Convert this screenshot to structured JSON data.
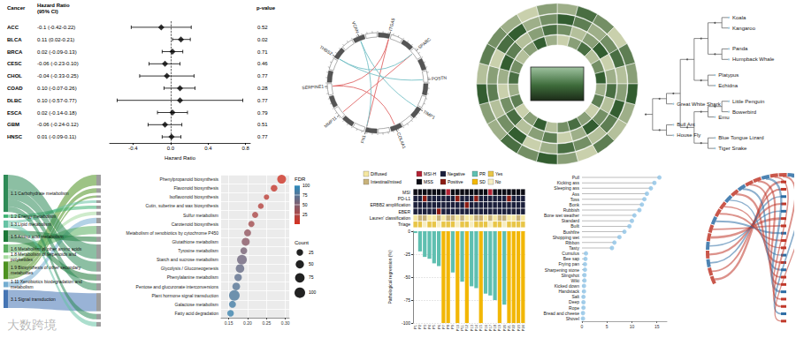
{
  "watermark": "大数跨境",
  "chart_data": [
    {
      "type": "forest",
      "columns": [
        "Cancer",
        "Hazard Ratio (95% CI)",
        "p-value"
      ],
      "x_label": "Hazard Ratio",
      "categories": [
        "ACC",
        "BLCA",
        "BRCA",
        "CESC",
        "CHOL",
        "COAD",
        "DLBC",
        "ESCA",
        "GBM",
        "HNSC"
      ],
      "values": [
        -0.1,
        0.11,
        0.02,
        -0.06,
        -0.04,
        0.1,
        0.1,
        0.02,
        -0.06,
        0.01
      ],
      "lower": [
        -0.42,
        0.02,
        -0.09,
        -0.23,
        -0.33,
        -0.07,
        -0.57,
        -0.14,
        -0.24,
        -0.09
      ],
      "upper": [
        0.22,
        0.21,
        0.13,
        0.1,
        0.25,
        0.26,
        0.77,
        0.18,
        0.12,
        0.11
      ],
      "value_labels": [
        "-0.1 (-0.42-0.22)",
        "0.11 (0.02-0.21)",
        "0.02 (-0.09-0.13)",
        "-0.06 (-0.23-0.10)",
        "-0.04 (-0.33-0.25)",
        "0.10 (-0.07-0.26)",
        "0.10 (-0.57-0.77)",
        "0.02 (-0.14-0.18)",
        "-0.06 (-0.24-0.12)",
        "0.01 (-0.09-0.11)"
      ],
      "p_values": [
        0.52,
        0.02,
        0.71,
        0.46,
        0.77,
        0.28,
        0.77,
        0.79,
        0.51,
        0.77
      ],
      "reference": 0,
      "xlim": [
        -0.65,
        0.85
      ],
      "xticks": [
        -0.4,
        {
          "value": 0,
          "label": "0.0"
        },
        0.4,
        0.8
      ],
      "marker": "diamond",
      "color": "#000000",
      "line_style": "dashed"
    },
    {
      "type": "circos",
      "labels": [
        "ITGA5",
        "SPARC",
        "POSTN",
        "TIMP1",
        "COL4A1",
        "FN1",
        "MMP11",
        "SERPINE1",
        "THBS2",
        "VCAN"
      ],
      "links": [
        {
          "source": "ITGA5",
          "target": "FN1",
          "color": "#e06666"
        },
        {
          "source": "SPARC",
          "target": "MMP11",
          "color": "#e06666"
        },
        {
          "source": "POSTN",
          "target": "THBS2",
          "color": "#76c1c6"
        },
        {
          "source": "TIMP1",
          "target": "VCAN",
          "color": "#76c1c6"
        },
        {
          "source": "COL4A1",
          "target": "SERPINE1",
          "color": "#e06666"
        },
        {
          "source": "FN1",
          "target": "VCAN",
          "color": "#76c1c6"
        },
        {
          "source": "SPARC",
          "target": "THBS2",
          "color": "#76c1c6"
        },
        {
          "source": "ITGA5",
          "target": "SERPINE1",
          "color": "#e06666"
        }
      ]
    },
    {
      "type": "radial_heatmap",
      "cells": [
        [
          0.2,
          0.5,
          0.8,
          0.3,
          0.6,
          0.9,
          0.4,
          0.7,
          0.2,
          0.5,
          0.8,
          0.6,
          0.3,
          0.9,
          0.5,
          0.2,
          0.7,
          0.4,
          0.8,
          0.6,
          0.3,
          0.5,
          0.9,
          0.4
        ],
        [
          0.6,
          0.3,
          0.5,
          0.9,
          0.2,
          0.4,
          0.8,
          0.3,
          0.6,
          0.9,
          0.4,
          0.2,
          0.7,
          0.5,
          0.3,
          0.8,
          0.6,
          0.2,
          0.4,
          0.9,
          0.7,
          0.3,
          0.5,
          0.8
        ],
        [
          0.9,
          0.7,
          0.4,
          0.6,
          0.8,
          0.3,
          0.5,
          0.9,
          0.7,
          0.3,
          0.6,
          0.8,
          0.4,
          0.2,
          0.9,
          0.6,
          0.3,
          0.7,
          0.5,
          0.2,
          0.8,
          0.9,
          0.4,
          0.6
        ],
        [
          0.4,
          0.8,
          0.6,
          0.2,
          0.7,
          0.5,
          0.9,
          0.4,
          0.3,
          0.7,
          0.2,
          0.5,
          0.9,
          0.6,
          0.8,
          0.4,
          0.5,
          0.9,
          0.3,
          0.7,
          0.6,
          0.4,
          0.2,
          0.5
        ]
      ],
      "color_range": [
        0,
        1
      ]
    },
    {
      "type": "tree",
      "color": "#9ecae1",
      "root": {
        "children": [
          {
            "children": [
              {
                "children": [
                  {
                    "children": [
                      {
                        "children": [
                          {
                            "children": [
                              {
                                "name": "Koala"
                              },
                              {
                                "name": "Kangaroo"
                              }
                            ]
                          },
                          {
                            "children": [
                              {
                                "name": "Panda"
                              },
                              {
                                "name": "Humpback Whale"
                              }
                            ]
                          }
                        ]
                      },
                      {
                        "children": [
                          {
                            "name": "Platypus"
                          },
                          {
                            "name": "Echidna"
                          }
                        ]
                      }
                    ]
                  },
                  {
                    "children": [
                      {
                        "children": [
                          {
                            "children": [
                              {
                                "name": "Little Penguin"
                              },
                              {
                                "name": "Bowerbird"
                              }
                            ]
                          },
                          {
                            "name": "Emu"
                          }
                        ]
                      },
                      {
                        "children": [
                          {
                            "name": "Blue Tongue Lizard"
                          },
                          {
                            "name": "Tiger Snake"
                          }
                        ]
                      }
                    ]
                  }
                ]
              },
              {
                "name": "Great White Shark"
              }
            ]
          },
          {
            "children": [
              {
                "name": "Bull Ant"
              },
              {
                "name": "House Fly"
              }
            ]
          }
        ]
      }
    },
    {
      "type": "sankey",
      "categories": [
        "1.1 Carbohydrate metabolism",
        "1.2 Energy metabolism",
        "1.3 Lipid metabolism",
        "1.5 Amino acid metabolism",
        "1.6 Metabolism of other amino acids",
        "1.8 Metabolism of terpenoids and polyketides",
        "1.9 Biosynthesis of other secondary metabolites",
        "1.11 Xenobiotics biodegradation and metabolism",
        "3.1 Signal transduction"
      ],
      "colors": [
        "#2e8b57",
        "#3cb371",
        "#66c2a4",
        "#1b7837",
        "#5aae61",
        "#a6dba0",
        "#4d9221",
        "#74add1",
        "#4575b4"
      ],
      "links": [
        {
          "source": "1.9 Biosynthesis of other secondary metabolites",
          "target": "Phenylpropanoid biosynthesis",
          "value": 60
        },
        {
          "source": "1.9 Biosynthesis of other secondary metabolites",
          "target": "Flavonoid biosynthesis",
          "value": 25
        },
        {
          "source": "1.9 Biosynthesis of other secondary metabolites",
          "target": "Isoflavonoid biosynthesis",
          "value": 12
        },
        {
          "source": "1.3 Lipid metabolism",
          "target": "Cutin, suberine and wax biosynthesis",
          "value": 15
        },
        {
          "source": "1.2 Energy metabolism",
          "target": "Sulfur metabolism",
          "value": 18
        },
        {
          "source": "1.8 Metabolism of terpenoids and polyketides",
          "target": "Carotenoid biosynthesis",
          "value": 20
        },
        {
          "source": "1.11 Xenobiotics biodegradation and metabolism",
          "target": "Metabolism of xenobiotics by cytochrome P450",
          "value": 30
        },
        {
          "source": "1.6 Metabolism of other amino acids",
          "target": "Glutathione metabolism",
          "value": 45
        },
        {
          "source": "1.5 Amino acid metabolism",
          "target": "Tyrosine metabolism",
          "value": 28
        },
        {
          "source": "1.1 Carbohydrate metabolism",
          "target": "Starch and sucrose metabolism",
          "value": 80
        },
        {
          "source": "1.1 Carbohydrate metabolism",
          "target": "Glycolysis / Gluconeogenesis",
          "value": 55
        },
        {
          "source": "1.5 Amino acid metabolism",
          "target": "Phenylalanine metabolism",
          "value": 35
        },
        {
          "source": "1.1 Carbohydrate metabolism",
          "target": "Pentose and glucuronate interconversions",
          "value": 40
        },
        {
          "source": "3.1 Signal transduction",
          "target": "Plant hormone signal transduction",
          "value": 100
        },
        {
          "source": "1.1 Carbohydrate metabolism",
          "target": "Galactose metabolism",
          "value": 30
        },
        {
          "source": "1.3 Lipid metabolism",
          "target": "Fatty acid degradation",
          "value": 25
        }
      ]
    },
    {
      "type": "bubble",
      "categories": [
        "Phenylpropanoid biosynthesis",
        "Flavonoid biosynthesis",
        "Isoflavonoid biosynthesis",
        "Cutin, suberine and wax biosynthesis",
        "Sulfur metabolism",
        "Carotenoid biosynthesis",
        "Metabolism of xenobiotics by cytochrome P450",
        "Glutathione metabolism",
        "Tyrosine metabolism",
        "Starch and sucrose metabolism",
        "Glycolysis / Gluconeogenesis",
        "Phenylalanine metabolism",
        "Pentose and glucuronate interconversions",
        "Plant hormone signal transduction",
        "Galactose metabolism",
        "Fatty acid degradation"
      ],
      "values": [
        0.29,
        0.27,
        0.25,
        0.235,
        0.22,
        0.21,
        0.2,
        0.195,
        0.19,
        0.185,
        0.18,
        0.175,
        0.17,
        0.165,
        0.16,
        0.155
      ],
      "sizes": [
        60,
        25,
        12,
        15,
        18,
        20,
        30,
        45,
        28,
        80,
        55,
        35,
        40,
        100,
        30,
        25
      ],
      "fdr": [
        5,
        10,
        15,
        20,
        25,
        30,
        40,
        45,
        55,
        60,
        65,
        70,
        75,
        80,
        85,
        90
      ],
      "xlim": [
        0.13,
        0.31
      ],
      "xticks": [
        0.15,
        {
          "value": 0.2,
          "label": "0.20"
        },
        0.25,
        {
          "value": 0.3,
          "label": "0.30"
        }
      ],
      "grid": true,
      "color_bar": {
        "title": "FDR",
        "range": [
          0,
          100
        ],
        "ticks": [
          25,
          50,
          75,
          100
        ]
      },
      "size_legend": {
        "title": "Count",
        "values": [
          25,
          50,
          75,
          100
        ]
      }
    },
    {
      "type": "oncoplot",
      "legend_items": [
        {
          "label": "Diffused",
          "color": "#f5e7a1"
        },
        {
          "label": "MSI-H",
          "color": "#b22234"
        },
        {
          "label": "Negative",
          "color": "#1b1f3b"
        },
        {
          "label": "PR",
          "color": "#5fbfb0"
        },
        {
          "label": "Yes",
          "color": "#e8c547"
        },
        {
          "label": "Intestinal/mixed",
          "color": "#c8b27a"
        },
        {
          "label": "MSS",
          "color": "#0c0c14"
        },
        {
          "label": "Positive",
          "color": "#8c1c13"
        },
        {
          "label": "SD",
          "color": "#f2b705"
        },
        {
          "label": "No",
          "color": "#f6edc2"
        }
      ],
      "tiles": [
        {
          "name": "MSI",
          "values": [
            "MSS",
            "MSS",
            "MSS",
            "MSS",
            "MSS",
            "MSS",
            "MSS",
            "MSI-H",
            "MSS",
            "MSS",
            "MSS",
            "MSS",
            "MSS",
            "MSS",
            "MSS",
            "MSS",
            "MSI-H",
            "MSS",
            "MSS",
            "MSS",
            "MSS",
            "MSS",
            "MSS",
            "MSS"
          ]
        },
        {
          "name": "PD-L1",
          "values": [
            "Negative",
            "Negative",
            "Positive",
            "Negative",
            "Negative",
            "Negative",
            "Negative",
            "Negative",
            "Negative",
            "Positive",
            "Negative",
            "Negative",
            "Negative",
            "Positive",
            "Negative",
            "Negative",
            "Negative",
            "Negative",
            "Negative",
            "Negative",
            "Positive",
            "Negative",
            "Negative",
            "Negative"
          ]
        },
        {
          "name": "ERBB2 amplification",
          "values": [
            "Negative",
            "Negative",
            "Negative",
            "Negative",
            "Negative",
            "Negative",
            "Negative",
            "Negative",
            "Negative",
            "Negative",
            "Negative",
            "Positive",
            "Negative",
            "Negative",
            "Negative",
            "Negative",
            "Negative",
            "Negative",
            "Negative",
            "Negative",
            "Negative",
            "Negative",
            "Negative",
            "Negative"
          ]
        },
        {
          "name": "EBER",
          "values": [
            "Negative",
            "Negative",
            "Negative",
            "Negative",
            "Negative",
            "Positive",
            "Negative",
            "Negative",
            "Negative",
            "Negative",
            "Negative",
            "Negative",
            "Negative",
            "Negative",
            "Negative",
            "Negative",
            "Negative",
            "Negative",
            "Negative",
            "Negative",
            "Negative",
            "Negative",
            "Negative",
            "Negative"
          ]
        },
        {
          "name": "Lauren' classification",
          "values": [
            "Diffused",
            "Intestinal/mixed",
            "Intestinal/mixed",
            "Diffused",
            "Diffused",
            "Intestinal/mixed",
            "Diffused",
            "Intestinal/mixed",
            "Intestinal/mixed",
            "Diffused",
            "Intestinal/mixed",
            "Diffused",
            "Diffused",
            "Intestinal/mixed",
            "Intestinal/mixed",
            "Diffused",
            "Intestinal/mixed",
            "Diffused",
            "Intestinal/mixed",
            "Intestinal/mixed",
            "Diffused",
            "Diffused",
            "Intestinal/mixed",
            "Diffused"
          ]
        },
        {
          "name": "Triage",
          "values": [
            "Yes",
            "Yes",
            "No",
            "Yes",
            "Yes",
            "No",
            "Yes",
            "Yes",
            "Yes",
            "No",
            "Yes",
            "Yes",
            "No",
            "Yes",
            "Yes",
            "Yes",
            "No",
            "Yes",
            "Yes",
            "No",
            "Yes",
            "Yes",
            "Yes",
            "Yes"
          ]
        }
      ],
      "categories": [
        "P1",
        "P2",
        "P3",
        "P4",
        "P5",
        "P6",
        "P7",
        "P8",
        "P9",
        "P10",
        "P11",
        "P12",
        "P13",
        "P14",
        "P15",
        "P16",
        "P17",
        "P18",
        "P19",
        "P20",
        "P21",
        "P22",
        "P23",
        "P24"
      ],
      "values": [
        -2,
        -22,
        -28,
        -30,
        -35,
        -38,
        -100,
        -100,
        -45,
        -100,
        -55,
        -100,
        -60,
        -62,
        -100,
        -68,
        -70,
        -75,
        -100,
        -80,
        -100,
        -100,
        -100,
        -100
      ],
      "colors": [
        "#5fbfb0",
        "#5fbfb0",
        "#5fbfb0",
        "#5fbfb0",
        "#5fbfb0",
        "#5fbfb0",
        "#f2b705",
        "#f2b705",
        "#5fbfb0",
        "#f2b705",
        "#5fbfb0",
        "#f2b705",
        "#5fbfb0",
        "#5fbfb0",
        "#f2b705",
        "#5fbfb0",
        "#5fbfb0",
        "#5fbfb0",
        "#f2b705",
        "#5fbfb0",
        "#f2b705",
        "#f2b705",
        "#f2b705",
        "#f2b705"
      ],
      "y_label": "Pathological regression (%)",
      "ylim": [
        -100,
        0
      ],
      "yticks": [
        0,
        -25,
        -50,
        -75,
        -100
      ]
    },
    {
      "type": "lollipop",
      "orientation": "horizontal",
      "color": "#8ec3e6",
      "categories": [
        "Pull",
        "Kicking ass",
        "Sleeping ass",
        "Ass",
        "Toss",
        "Bonk",
        "Rubbish",
        "Bone wet weather",
        "Standard",
        "Built",
        "Bushfire",
        "Shopping wet",
        "Ribbon",
        "Tasty",
        "Cumulus",
        "Bee sap",
        "Frying pan",
        "Sharpening stone",
        "Slingshot",
        "Wiki",
        "Kicked down",
        "Handstack",
        "Salt",
        "Deep",
        "Rope",
        "Bread and cheese",
        "Shovel"
      ],
      "values": [
        15.5,
        14.5,
        13.8,
        13,
        12.5,
        12,
        11.5,
        10.5,
        10,
        9.5,
        8.5,
        7.5,
        6.5,
        6,
        0.8,
        0.7,
        0.6,
        0.6,
        0.5,
        0.5,
        0.4,
        0.4,
        0.3,
        0.3,
        0.3,
        0.2,
        0.2
      ],
      "xlim": [
        0,
        17
      ],
      "xticks": [
        0,
        5,
        10,
        15
      ]
    },
    {
      "type": "chord",
      "values": [
        0.8,
        0.6,
        -0.5,
        0.7,
        -0.4,
        0.9,
        0.5,
        -0.7,
        0.6,
        0.4,
        -0.3,
        0.8,
        -0.6,
        0.5,
        0.7,
        -0.8,
        0.4,
        0.6,
        -0.5,
        0.3
      ]
    }
  ]
}
